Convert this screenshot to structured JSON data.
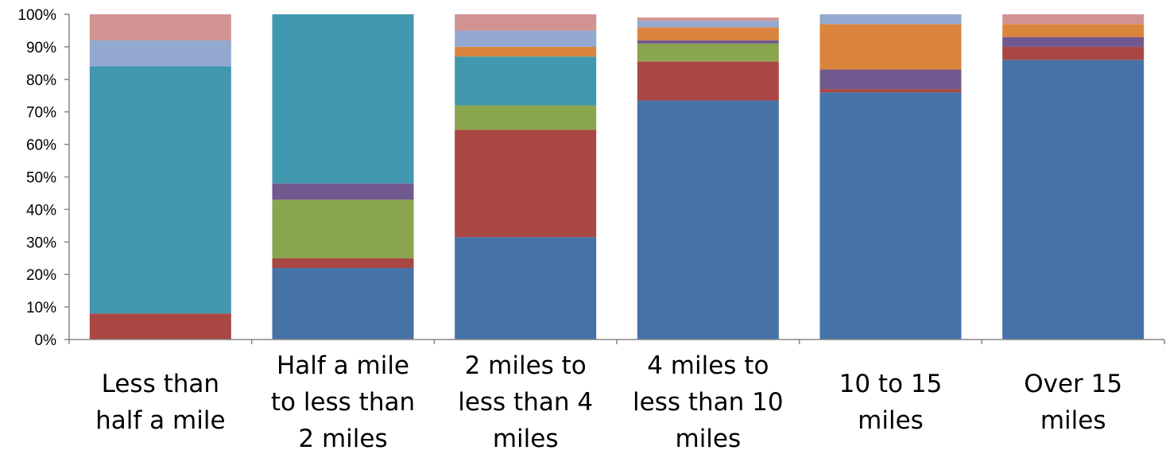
{
  "chart_data": {
    "type": "bar",
    "stacked": true,
    "percent": true,
    "categories": [
      [
        "Less than",
        "half a mile"
      ],
      [
        "Half a mile",
        "to less than",
        "2 miles"
      ],
      [
        "2 miles to",
        "less than 4",
        "miles"
      ],
      [
        "4 miles to",
        "less than 10",
        "miles"
      ],
      [
        "10 to 15",
        "miles"
      ],
      [
        "Over 15",
        "miles"
      ]
    ],
    "series": [
      {
        "color": "#4572A7",
        "values": [
          0,
          22,
          31.5,
          73.5,
          76,
          86
        ]
      },
      {
        "color": "#AA4643",
        "values": [
          8,
          3,
          33,
          12,
          1,
          4
        ]
      },
      {
        "color": "#89A54E",
        "values": [
          0,
          18,
          7.5,
          5.5,
          0,
          0
        ]
      },
      {
        "color": "#71588F",
        "values": [
          0,
          5,
          0,
          1,
          6,
          3
        ]
      },
      {
        "color": "#4198AF",
        "values": [
          76,
          52,
          15,
          0,
          0,
          0
        ]
      },
      {
        "color": "#DB843D",
        "values": [
          0,
          0,
          3,
          4,
          14,
          4
        ]
      },
      {
        "color": "#93A9CF",
        "values": [
          8,
          0,
          5,
          2,
          3,
          0
        ]
      },
      {
        "color": "#D19392",
        "values": [
          8,
          0,
          5,
          1,
          0,
          3
        ]
      }
    ],
    "y_ticks": [
      "0%",
      "10%",
      "20%",
      "30%",
      "40%",
      "50%",
      "60%",
      "70%",
      "80%",
      "90%",
      "100%"
    ],
    "ylim": [
      0,
      100
    ],
    "title": "",
    "xlabel": "",
    "ylabel": "",
    "legend": "none",
    "grid": false
  }
}
